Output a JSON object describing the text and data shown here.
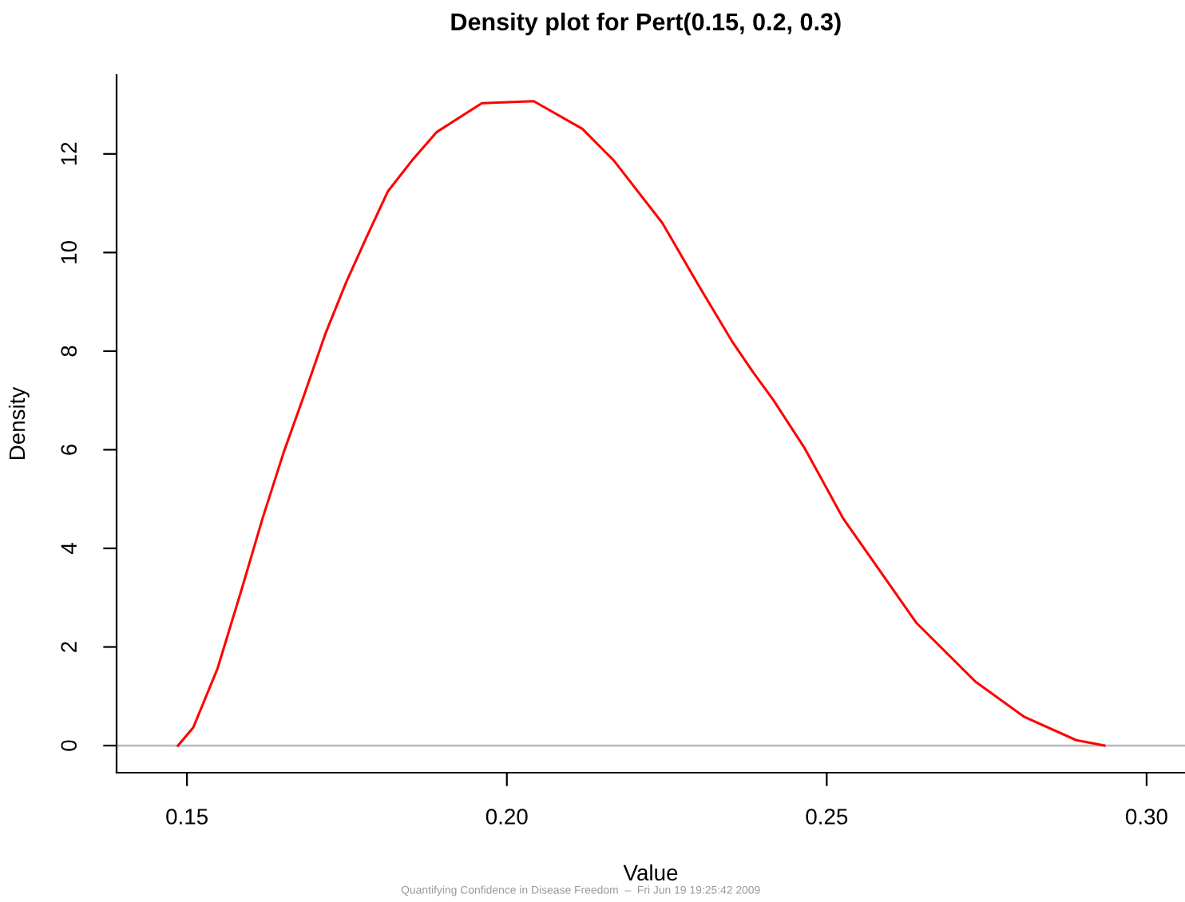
{
  "chart_data": {
    "type": "line",
    "title": "Density plot for Pert(0.15, 0.2, 0.3)",
    "xlabel": "Value",
    "ylabel": "Density",
    "annotations": [
      "Quantifying Confidence in Disease Freedom  –  Fri Jun 19 19:25:42 2009"
    ],
    "x": [
      0.1486,
      0.151,
      0.1548,
      0.1586,
      0.1618,
      0.1651,
      0.1684,
      0.1716,
      0.1749,
      0.1781,
      0.1814,
      0.1852,
      0.189,
      0.1961,
      0.2042,
      0.2118,
      0.2167,
      0.2243,
      0.2303,
      0.2352,
      0.2385,
      0.2417,
      0.2466,
      0.2526,
      0.2591,
      0.264,
      0.2733,
      0.2809,
      0.289,
      0.2934
    ],
    "series": [
      {
        "color": "#ff0000",
        "values": [
          0.0,
          0.37,
          1.57,
          3.19,
          4.6,
          5.94,
          7.14,
          8.34,
          9.4,
          10.32,
          11.24,
          11.87,
          12.44,
          13.03,
          13.07,
          12.51,
          11.87,
          10.6,
          9.26,
          8.2,
          7.57,
          7.0,
          6.02,
          4.6,
          3.4,
          2.49,
          1.29,
          0.58,
          0.11,
          0.0
        ]
      }
    ],
    "xlim": [
      0.139,
      0.306
    ],
    "ylim": [
      -0.55,
      13.6
    ],
    "xticks": [
      {
        "value": 0.15,
        "label": "0.15"
      },
      {
        "value": 0.2,
        "label": "0.20"
      },
      {
        "value": 0.25,
        "label": "0.25"
      },
      {
        "value": 0.3,
        "label": "0.30"
      }
    ],
    "yticks": [
      0,
      2,
      4,
      6,
      8,
      10,
      12
    ],
    "ref_lines": [
      {
        "axis": "y",
        "value": 0,
        "color": "#bebebe"
      }
    ],
    "grid": false,
    "legend": false,
    "marker": "none",
    "line_style": "solid"
  }
}
